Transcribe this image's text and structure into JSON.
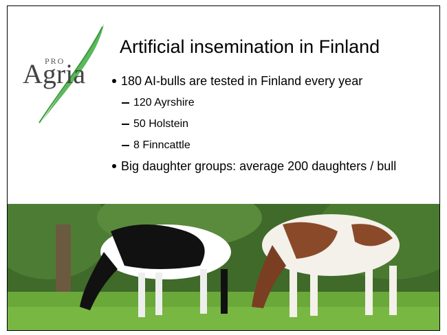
{
  "logo": {
    "small": "PRO",
    "main": "Agria"
  },
  "title": "Artificial insemination in Finland",
  "bullets": [
    {
      "text": "180 AI-bulls are tested in Finland every year",
      "sub": [
        "120 Ayrshire",
        "50 Holstein",
        "8 Finncattle"
      ]
    },
    {
      "text": "Big daughter groups: average 200 daughters / bull"
    }
  ]
}
